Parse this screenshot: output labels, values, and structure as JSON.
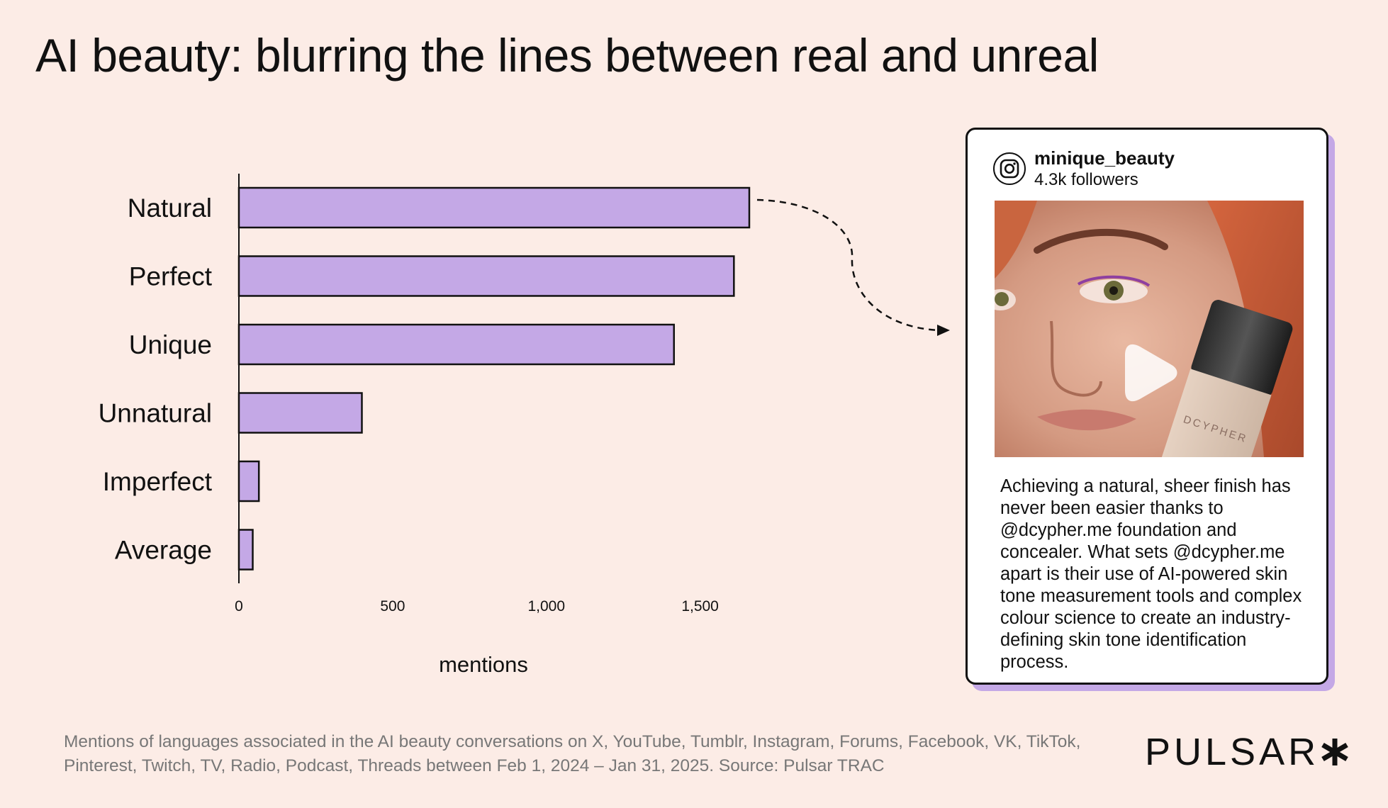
{
  "title": "AI beauty: blurring the lines between real and unreal",
  "chart_data": {
    "type": "bar",
    "orientation": "horizontal",
    "categories": [
      "Natural",
      "Perfect",
      "Unique",
      "Unnatural",
      "Imperfect",
      "Average"
    ],
    "values": [
      1660,
      1610,
      1415,
      400,
      65,
      45
    ],
    "xlabel": "mentions",
    "ylabel": "",
    "xlim": [
      0,
      1660
    ],
    "x_ticks": [
      0,
      500,
      1000,
      1500
    ],
    "x_tick_labels": [
      "0",
      "500",
      "1,000",
      "1,500"
    ],
    "grid": false,
    "bar_color": "#c4a8e6",
    "bar_border_color": "#111111"
  },
  "post": {
    "platform_icon": "instagram-icon",
    "username": "minique_beauty",
    "followers": "4.3k followers",
    "media_icon": "play-icon",
    "text": "Achieving a natural, sheer finish has never been easier thanks to @dcypher.me foundation and concealer. What sets @dcypher.me apart is their use of AI-powered skin tone measurement tools and complex colour science to create an industry-defining skin tone identification process.",
    "bottle_label": "DCYPHER"
  },
  "footnote": "Mentions of languages associated in the AI beauty conversations on X, YouTube, Tumblr, Instagram, Forums, Facebook, VK, TikTok, Pinterest, Twitch, TV, Radio, Podcast, Threads between Feb 1,  2024 – Jan  31, 2025. Source: Pulsar TRAC",
  "logo": {
    "text": "PULSAR",
    "icon": "asterisk-icon"
  },
  "colors": {
    "background": "#fcece6",
    "accent": "#c4a8e6",
    "text": "#111111",
    "muted": "#777777"
  }
}
